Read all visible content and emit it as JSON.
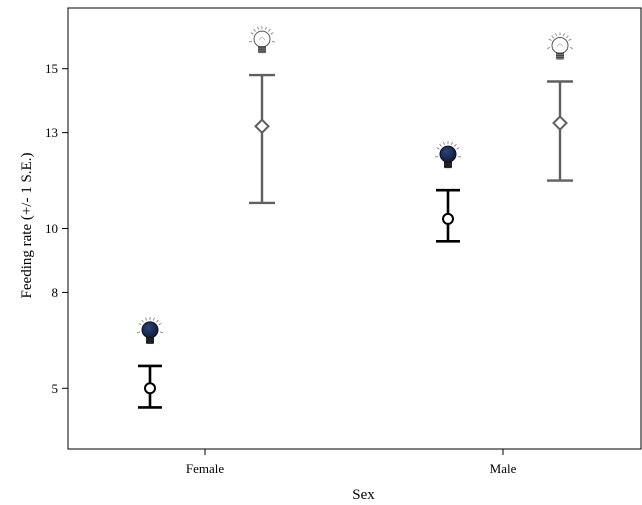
{
  "chart_data": {
    "type": "scatter",
    "title": "",
    "xlabel": "Sex",
    "ylabel": "Feeding rate (+/- 1 S.E.)",
    "categories": [
      "Female",
      "Male"
    ],
    "yticks": [
      5,
      8,
      10,
      13,
      15
    ],
    "ylim": [
      3.1,
      16.9
    ],
    "grid": false,
    "legend": "none",
    "series": [
      {
        "marker": "circle",
        "icon": "dark-lightbulb-icon",
        "color": "#000000",
        "icon_color": "#1a2a52",
        "points": [
          {
            "category": "Female",
            "mean": 5.0,
            "lower": 4.4,
            "upper": 5.7
          },
          {
            "category": "Male",
            "mean": 10.3,
            "lower": 9.6,
            "upper": 11.2
          }
        ]
      },
      {
        "marker": "diamond",
        "icon": "white-lightbulb-icon",
        "color": "#606060",
        "icon_color": "#ffffff",
        "points": [
          {
            "category": "Female",
            "mean": 13.2,
            "lower": 10.8,
            "upper": 14.8
          },
          {
            "category": "Male",
            "mean": 13.3,
            "lower": 11.5,
            "upper": 14.6
          }
        ]
      }
    ]
  }
}
